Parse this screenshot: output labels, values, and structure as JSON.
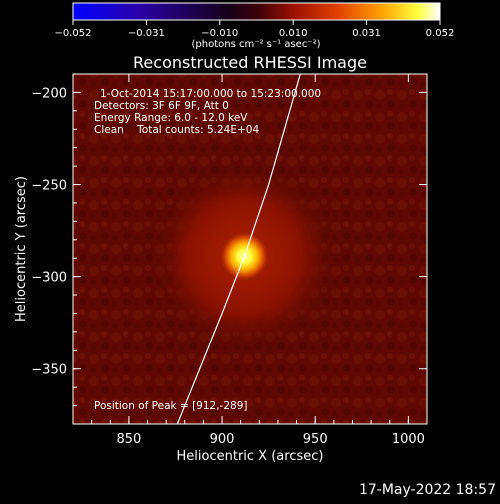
{
  "colorbar": {
    "tick_labels": [
      "−0.052",
      "−0.031",
      "−0.010",
      "0.010",
      "0.031",
      "0.052"
    ],
    "unit_label": "(photons cm⁻² s⁻¹ asec⁻²)",
    "min": -0.052,
    "max": 0.052
  },
  "image": {
    "title": "Reconstructed RHESSI Image",
    "info_lines": [
      "1-Oct-2014 15:17:00.000 to 15:23:00.000",
      "Detectors: 3F 6F 9F, Att 0",
      "Energy Range: 6.0 - 12.0 keV",
      "Clean    Total counts: 5.24E+04"
    ],
    "peak_text": "Position of Peak = [912,-289]",
    "peak": {
      "x": 912,
      "y": -289
    }
  },
  "axes": {
    "xlabel": "Heliocentric X (arcsec)",
    "ylabel": "Heliocentric Y (arcsec)",
    "xlim": [
      820,
      1010
    ],
    "ylim": [
      -380,
      -190
    ],
    "xticks": [
      {
        "value": 850,
        "label": "850"
      },
      {
        "value": 900,
        "label": "900"
      },
      {
        "value": 950,
        "label": "950"
      },
      {
        "value": 1000,
        "label": "1000"
      }
    ],
    "yticks": [
      {
        "value": -200,
        "label": "−200"
      },
      {
        "value": -250,
        "label": "−250"
      },
      {
        "value": -300,
        "label": "−300"
      },
      {
        "value": -350,
        "label": "−350"
      }
    ]
  },
  "limb_curve": [
    [
      942,
      -190
    ],
    [
      925,
      -250
    ],
    [
      912,
      -289
    ],
    [
      900,
      -320
    ],
    [
      876,
      -380
    ]
  ],
  "footer": {
    "timestamp": "17-May-2022 18:57"
  }
}
